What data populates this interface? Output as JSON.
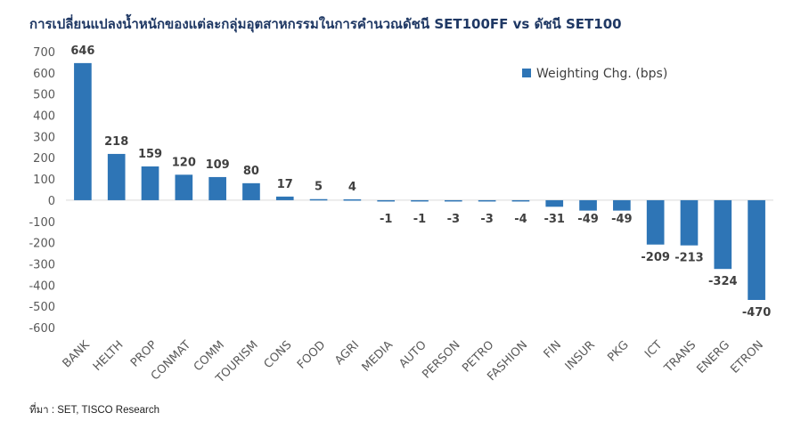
{
  "chart_data": {
    "type": "bar",
    "title": "การเปลี่ยนแปลงน้ำหนักของแต่ละกลุ่มอุตสาหกรรมในการคำนวณดัชนี SET100FF vs ดัชนี SET100",
    "categories": [
      "BANK",
      "HELTH",
      "PROP",
      "CONMAT",
      "COMM",
      "TOURISM",
      "CONS",
      "FOOD",
      "AGRI",
      "MEDIA",
      "AUTO",
      "PERSON",
      "PETRO",
      "FASHION",
      "FIN",
      "INSUR",
      "PKG",
      "ICT",
      "TRANS",
      "ENERG",
      "ETRON"
    ],
    "series": [
      {
        "name": "Weighting Chg. (bps)",
        "values": [
          646,
          218,
          159,
          120,
          109,
          80,
          17,
          5,
          4,
          -1,
          -1,
          -3,
          -3,
          -4,
          -31,
          -49,
          -49,
          -209,
          -213,
          -324,
          -470
        ]
      }
    ],
    "ylim": [
      -600,
      700
    ],
    "yticks": [
      "700",
      "600",
      "500",
      "400",
      "300",
      "200",
      "100",
      "0",
      "-100",
      "-200",
      "-300",
      "-400",
      "-500",
      "-600"
    ],
    "legend_position": "top-right",
    "grid": false,
    "xlabel": "",
    "ylabel": "",
    "bar_color": "#2e75b6"
  },
  "source": "ที่มา : SET, TISCO Research"
}
